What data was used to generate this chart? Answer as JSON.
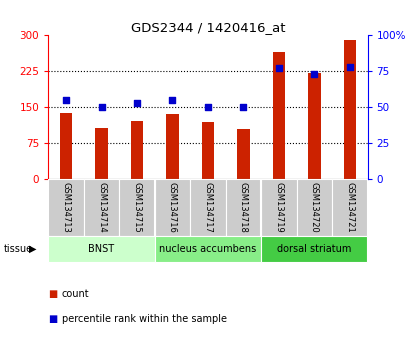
{
  "title": "GDS2344 / 1420416_at",
  "samples": [
    "GSM134713",
    "GSM134714",
    "GSM134715",
    "GSM134716",
    "GSM134717",
    "GSM134718",
    "GSM134719",
    "GSM134720",
    "GSM134721"
  ],
  "counts": [
    138,
    105,
    120,
    135,
    118,
    103,
    265,
    222,
    290
  ],
  "percentiles": [
    55,
    50,
    53,
    55,
    50,
    50,
    77,
    73,
    78
  ],
  "bar_color": "#cc2200",
  "dot_color": "#0000cc",
  "left_ylim": [
    0,
    300
  ],
  "right_ylim": [
    0,
    100
  ],
  "left_yticks": [
    0,
    75,
    150,
    225,
    300
  ],
  "right_yticks": [
    0,
    25,
    50,
    75,
    100
  ],
  "right_yticklabels": [
    "0",
    "25",
    "50",
    "75",
    "100%"
  ],
  "tissue_groups": [
    {
      "label": "BNST",
      "start": 0,
      "end": 3,
      "color": "#ccffcc"
    },
    {
      "label": "nucleus accumbens",
      "start": 3,
      "end": 6,
      "color": "#88ee88"
    },
    {
      "label": "dorsal striatum",
      "start": 6,
      "end": 9,
      "color": "#44cc44"
    }
  ],
  "tissue_label": "tissue",
  "legend_count_label": "count",
  "legend_pct_label": "percentile rank within the sample",
  "background_color": "#ffffff",
  "plot_bg_color": "#ffffff",
  "sample_bg_color": "#cccccc",
  "bar_width": 0.35,
  "dot_size": 20
}
